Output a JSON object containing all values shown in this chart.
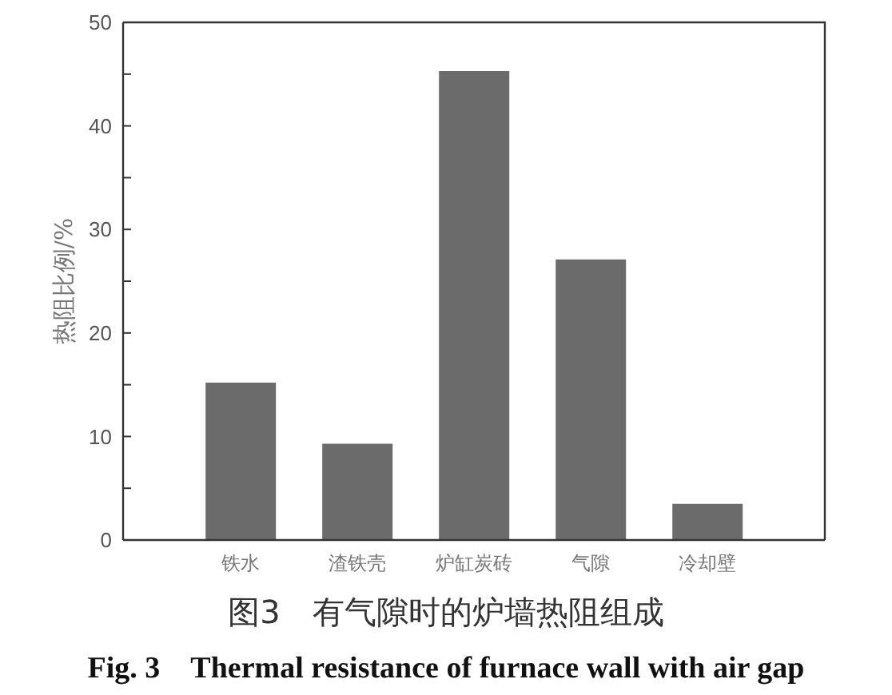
{
  "chart_data": {
    "type": "bar",
    "ylabel": "热阻比例/%",
    "categories": [
      "铁水",
      "渣铁壳",
      "炉缸炭砖",
      "气隙",
      "冷却壁"
    ],
    "values": [
      15.2,
      9.3,
      45.3,
      27.1,
      3.5
    ],
    "color": "#6b6b6b",
    "ylim": [
      0,
      50
    ],
    "yticks": [
      0,
      {
        "value": 5,
        "label": null
      },
      10,
      {
        "value": 15,
        "label": null
      },
      20,
      {
        "value": 25,
        "label": null
      },
      30,
      {
        "value": 35,
        "label": null
      },
      40,
      {
        "value": 45,
        "label": null
      },
      50
    ],
    "annotations": [
      "图3　有气隙时的炉墙热阻组成",
      "Fig. 3　Thermal resistance of furnace wall with air gap"
    ]
  }
}
